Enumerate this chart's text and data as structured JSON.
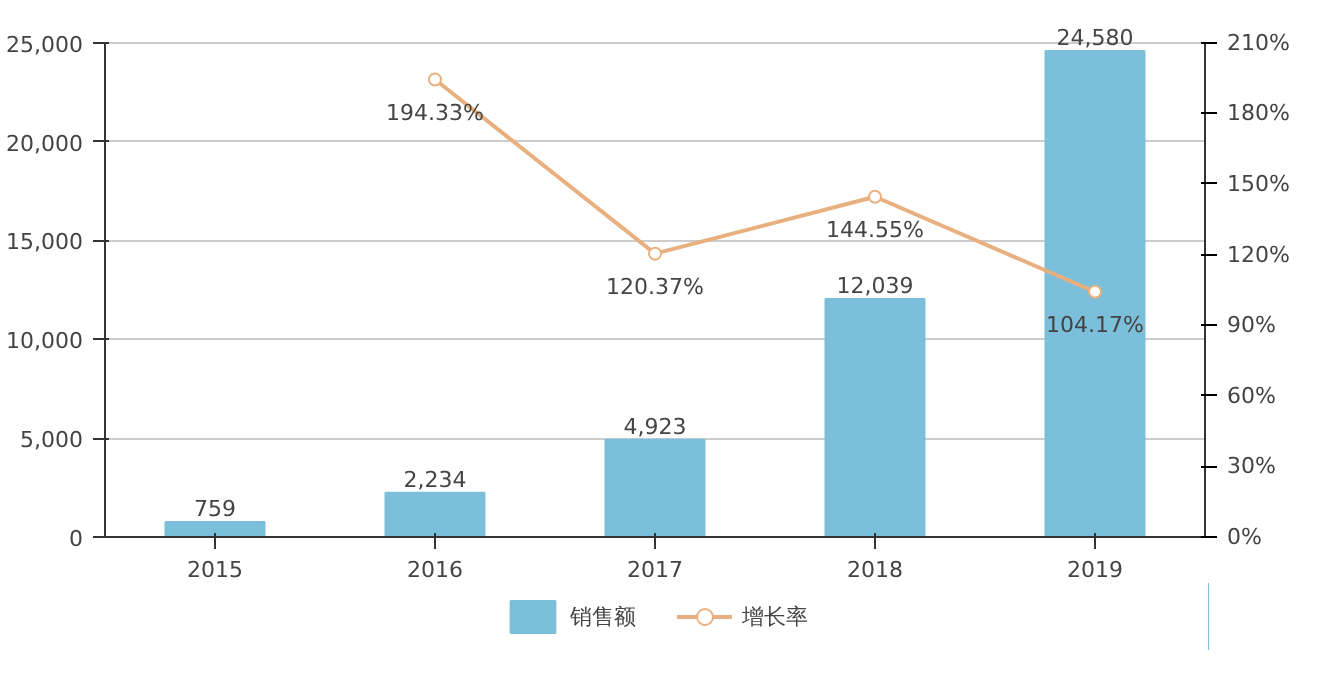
{
  "chart_data": {
    "type": "bar",
    "categories": [
      "2015",
      "2016",
      "2017",
      "2018",
      "2019"
    ],
    "series": [
      {
        "name": "销售额",
        "color": "#7bbfda",
        "values": [
          759,
          2234,
          4923,
          12039,
          24580
        ],
        "value_labels": [
          "759",
          "2,234",
          "4,923",
          "12,039",
          "24,580"
        ]
      },
      {
        "name": "增长率",
        "type": "line",
        "axis": "y2",
        "color": "#e9b07f",
        "marker": "circle",
        "values": [
          null,
          194.33,
          120.37,
          144.55,
          104.17
        ],
        "value_labels": [
          null,
          "194.33%",
          "120.37%",
          "144.55%",
          "104.17%"
        ]
      }
    ],
    "ylim": [
      0,
      25000
    ],
    "yticks": [
      0,
      {
        "value": 5000,
        "label": "5,000"
      },
      {
        "value": 10000,
        "label": "10,000"
      },
      {
        "value": 15000,
        "label": "15,000"
      },
      {
        "value": 20000,
        "label": "20,000"
      },
      {
        "value": 25000,
        "label": "25,000"
      }
    ],
    "y2lim": [
      0,
      210
    ],
    "y2ticks": [
      {
        "value": 0,
        "label": "0%"
      },
      {
        "value": 30,
        "label": "30%"
      },
      {
        "value": 60,
        "label": "60%"
      },
      {
        "value": 90,
        "label": "90%"
      },
      {
        "value": 120,
        "label": "120%"
      },
      {
        "value": 150,
        "label": "150%"
      },
      {
        "value": 180,
        "label": "180%"
      },
      {
        "value": 210,
        "label": "210%"
      }
    ],
    "grid": "y",
    "legend": "bottom"
  }
}
